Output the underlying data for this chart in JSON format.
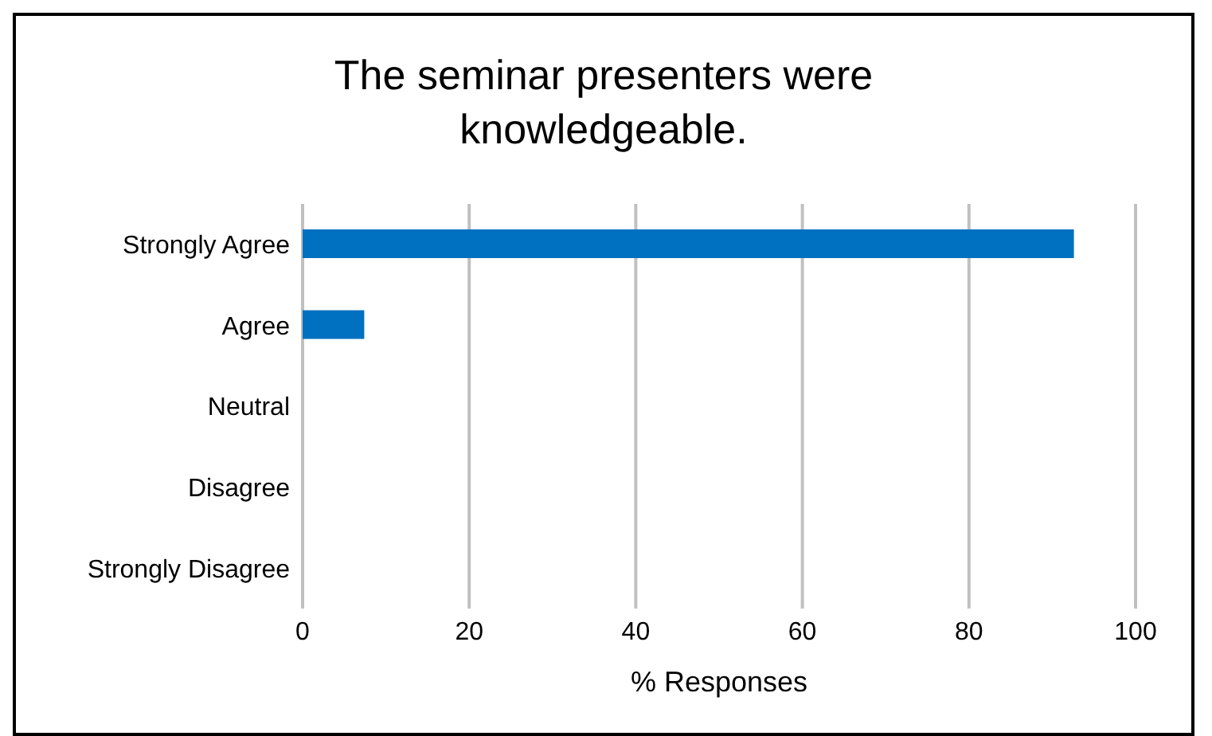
{
  "chart_data": {
    "type": "bar",
    "orientation": "horizontal",
    "title": "The seminar presenters were knowledgeable.",
    "xlabel": "% Responses",
    "categories": [
      "Strongly Agree",
      "Agree",
      "Neutral",
      "Disagree",
      "Strongly Disagree"
    ],
    "values": [
      92.6,
      7.4,
      0,
      0,
      0
    ],
    "color": "#0070c0",
    "xlim": [
      0,
      100
    ],
    "xticks": [
      0,
      20,
      40,
      60,
      80,
      100
    ],
    "grid": "x",
    "legend": false
  }
}
